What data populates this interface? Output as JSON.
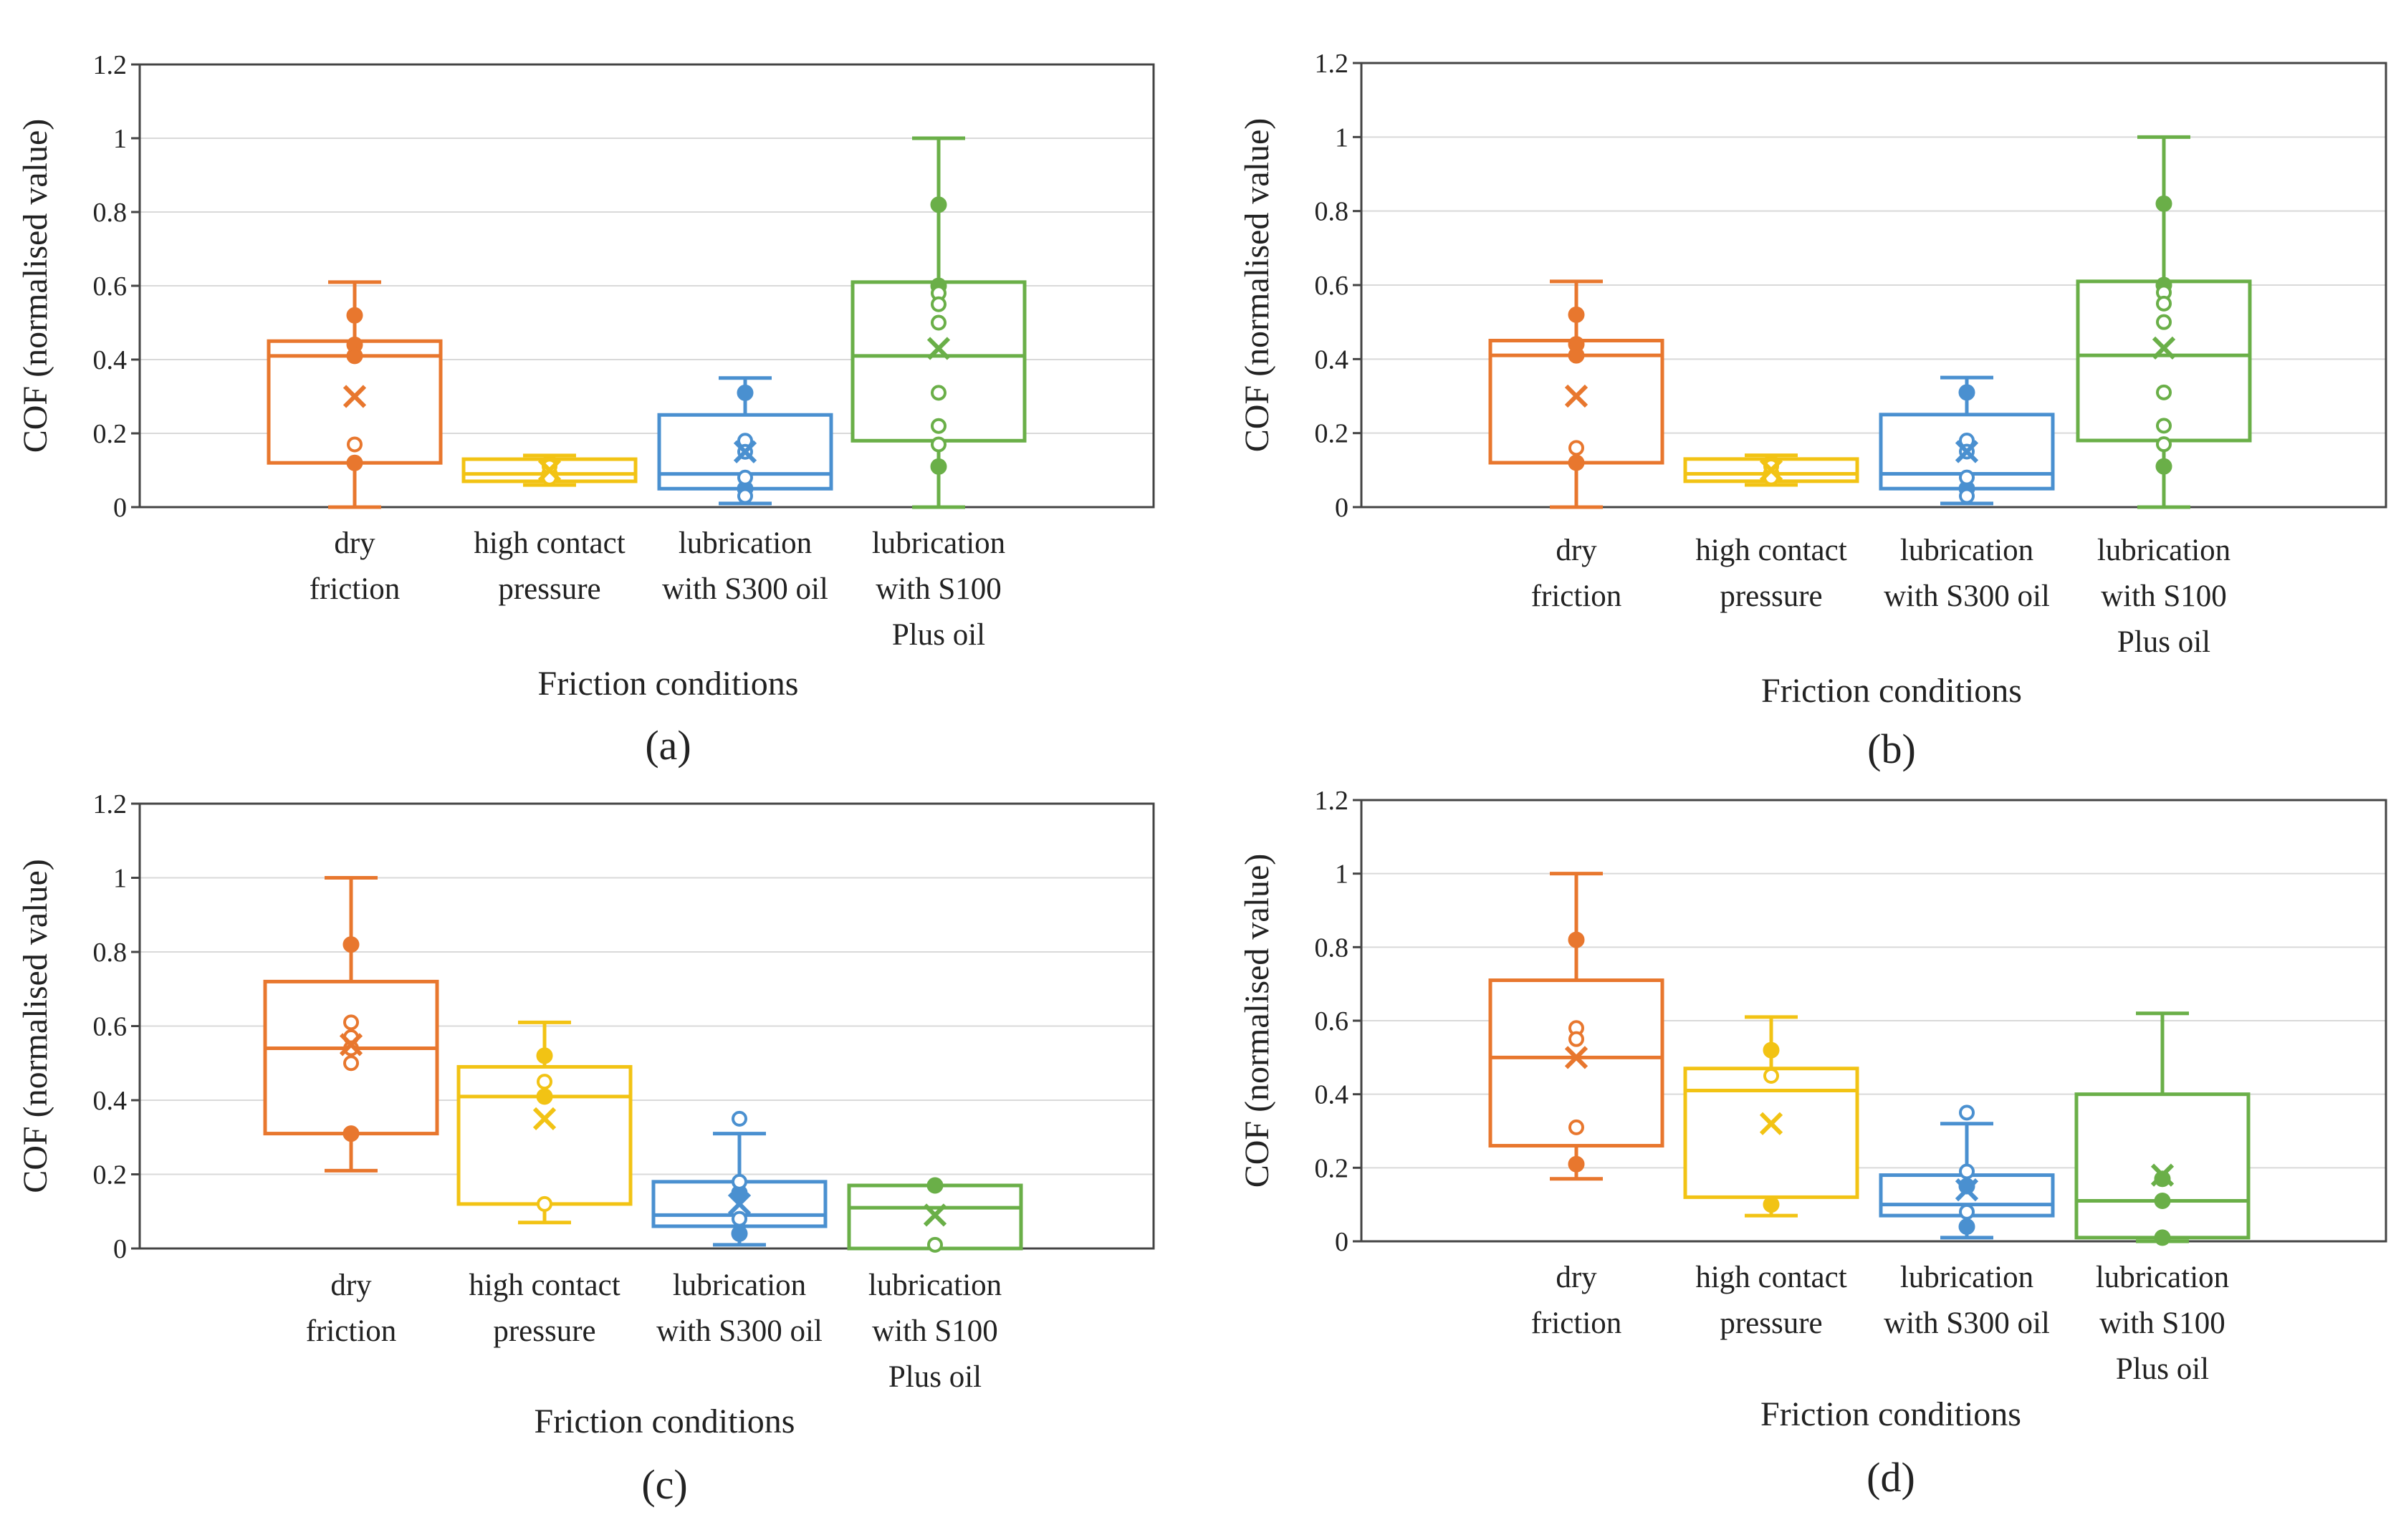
{
  "colors": {
    "dry friction": "#e8772e",
    "high contact pressure": "#f2c314",
    "lubrication with S300 oil": "#4a90d0",
    "lubrication with S100 Plus oil": "#6aaf48",
    "axis": "#444444",
    "grid": "#d9d9d9"
  },
  "chart_data": [
    {
      "type": "box",
      "panel_label": "(a)",
      "xlabel": "Friction conditions",
      "ylabel": "COF (normalised value)",
      "ylim": [
        0,
        1.2
      ],
      "yticks": [
        "0",
        "0.2",
        "0.4",
        "0.6",
        "0.8",
        "1",
        "1.2"
      ],
      "grid": "horizontal",
      "categories": [
        {
          "label_lines": [
            "dry",
            "friction"
          ],
          "whisker_low": 0.0,
          "q1": 0.12,
          "median": 0.41,
          "q3": 0.45,
          "whisker_high": 0.61,
          "mean": 0.3,
          "points_filled": [
            0.52,
            0.44,
            0.41,
            0.12
          ],
          "points_open": [
            0.17
          ]
        },
        {
          "label_lines": [
            "high contact",
            "pressure"
          ],
          "whisker_low": 0.06,
          "q1": 0.07,
          "median": 0.09,
          "q3": 0.13,
          "whisker_high": 0.14,
          "mean": 0.1,
          "points_filled": [
            0.12,
            0.09
          ],
          "points_open": [
            0.11,
            0.08
          ]
        },
        {
          "label_lines": [
            "lubrication",
            "with S300 oil"
          ],
          "whisker_low": 0.01,
          "q1": 0.05,
          "median": 0.09,
          "q3": 0.25,
          "whisker_high": 0.35,
          "mean": 0.15,
          "points_filled": [
            0.31,
            0.05
          ],
          "points_open": [
            0.18,
            0.15,
            0.08,
            0.03
          ]
        },
        {
          "label_lines": [
            "lubrication",
            "with S100",
            "Plus oil"
          ],
          "whisker_low": 0.0,
          "q1": 0.18,
          "median": 0.41,
          "q3": 0.61,
          "whisker_high": 1.0,
          "mean": 0.43,
          "points_filled": [
            0.82,
            0.6,
            0.11
          ],
          "points_open": [
            0.58,
            0.55,
            0.5,
            0.31,
            0.22,
            0.17
          ]
        }
      ]
    },
    {
      "type": "box",
      "panel_label": "(b)",
      "xlabel": "Friction conditions",
      "ylabel": "COF (normalised value)",
      "ylim": [
        0,
        1.2
      ],
      "yticks": [
        "0",
        "0.2",
        "0.4",
        "0.6",
        "0.8",
        "1",
        "1.2"
      ],
      "grid": "horizontal",
      "categories": [
        {
          "label_lines": [
            "dry",
            "friction"
          ],
          "whisker_low": 0.0,
          "q1": 0.12,
          "median": 0.41,
          "q3": 0.45,
          "whisker_high": 0.61,
          "mean": 0.3,
          "points_filled": [
            0.52,
            0.44,
            0.41,
            0.12
          ],
          "points_open": [
            0.16
          ]
        },
        {
          "label_lines": [
            "high contact",
            "pressure"
          ],
          "whisker_low": 0.06,
          "q1": 0.07,
          "median": 0.09,
          "q3": 0.13,
          "whisker_high": 0.14,
          "mean": 0.1,
          "points_filled": [
            0.12,
            0.09
          ],
          "points_open": [
            0.11,
            0.08
          ]
        },
        {
          "label_lines": [
            "lubrication",
            "with S300 oil"
          ],
          "whisker_low": 0.01,
          "q1": 0.05,
          "median": 0.09,
          "q3": 0.25,
          "whisker_high": 0.35,
          "mean": 0.15,
          "points_filled": [
            0.31,
            0.05
          ],
          "points_open": [
            0.18,
            0.15,
            0.08,
            0.03
          ]
        },
        {
          "label_lines": [
            "lubrication",
            "with S100",
            "Plus oil"
          ],
          "whisker_low": 0.0,
          "q1": 0.18,
          "median": 0.41,
          "q3": 0.61,
          "whisker_high": 1.0,
          "mean": 0.43,
          "points_filled": [
            0.82,
            0.6,
            0.11
          ],
          "points_open": [
            0.58,
            0.55,
            0.5,
            0.31,
            0.22,
            0.17
          ]
        }
      ]
    },
    {
      "type": "box",
      "panel_label": "(c)",
      "xlabel": "Friction conditions",
      "ylabel": "COF (normalised value)",
      "ylim": [
        0,
        1.2
      ],
      "yticks": [
        "0",
        "0.2",
        "0.4",
        "0.6",
        "0.8",
        "1",
        "1.2"
      ],
      "grid": "horizontal",
      "categories": [
        {
          "label_lines": [
            "dry",
            "friction"
          ],
          "whisker_low": 0.21,
          "q1": 0.31,
          "median": 0.54,
          "q3": 0.72,
          "whisker_high": 1.0,
          "mean": 0.55,
          "points_filled": [
            0.82,
            0.31
          ],
          "points_open": [
            0.61,
            0.57,
            0.54,
            0.5
          ]
        },
        {
          "label_lines": [
            "high contact",
            "pressure"
          ],
          "whisker_low": 0.07,
          "q1": 0.12,
          "median": 0.41,
          "q3": 0.49,
          "whisker_high": 0.61,
          "mean": 0.35,
          "points_filled": [
            0.52,
            0.41
          ],
          "points_open": [
            0.45,
            0.12
          ]
        },
        {
          "label_lines": [
            "lubrication",
            "with S300 oil"
          ],
          "whisker_low": 0.01,
          "q1": 0.06,
          "median": 0.09,
          "q3": 0.18,
          "whisker_high": 0.31,
          "mean": 0.12,
          "points_filled": [
            0.15,
            0.04
          ],
          "points_open": [
            0.35,
            0.18,
            0.08
          ]
        },
        {
          "label_lines": [
            "lubrication",
            "with S100",
            "Plus oil"
          ],
          "whisker_low": 0.0,
          "q1": 0.0,
          "median": 0.11,
          "q3": 0.17,
          "whisker_high": 0.17,
          "mean": 0.09,
          "points_filled": [
            0.17
          ],
          "points_open": [
            0.01
          ]
        }
      ]
    },
    {
      "type": "box",
      "panel_label": "(d)",
      "xlabel": "Friction conditions",
      "ylabel": "COF (normalised value)",
      "ylim": [
        0,
        1.2
      ],
      "yticks": [
        "0",
        "0.2",
        "0.4",
        "0.6",
        "0.8",
        "1",
        "1.2"
      ],
      "grid": "horizontal",
      "categories": [
        {
          "label_lines": [
            "dry",
            "friction"
          ],
          "whisker_low": 0.17,
          "q1": 0.26,
          "median": 0.5,
          "q3": 0.71,
          "whisker_high": 1.0,
          "mean": 0.5,
          "points_filled": [
            0.82,
            0.21
          ],
          "points_open": [
            0.58,
            0.55,
            0.31
          ]
        },
        {
          "label_lines": [
            "high contact",
            "pressure"
          ],
          "whisker_low": 0.07,
          "q1": 0.12,
          "median": 0.41,
          "q3": 0.47,
          "whisker_high": 0.61,
          "mean": 0.32,
          "points_filled": [
            0.52,
            0.1
          ],
          "points_open": [
            0.45
          ]
        },
        {
          "label_lines": [
            "lubrication",
            "with S300 oil"
          ],
          "whisker_low": 0.01,
          "q1": 0.07,
          "median": 0.1,
          "q3": 0.18,
          "whisker_high": 0.32,
          "mean": 0.14,
          "points_filled": [
            0.15,
            0.04
          ],
          "points_open": [
            0.35,
            0.19,
            0.08
          ]
        },
        {
          "label_lines": [
            "lubrication",
            "with S100",
            "Plus oil"
          ],
          "whisker_low": 0.0,
          "q1": 0.01,
          "median": 0.11,
          "q3": 0.4,
          "whisker_high": 0.62,
          "mean": 0.18,
          "points_filled": [
            0.17,
            0.11,
            0.01
          ],
          "points_open": []
        }
      ]
    }
  ]
}
